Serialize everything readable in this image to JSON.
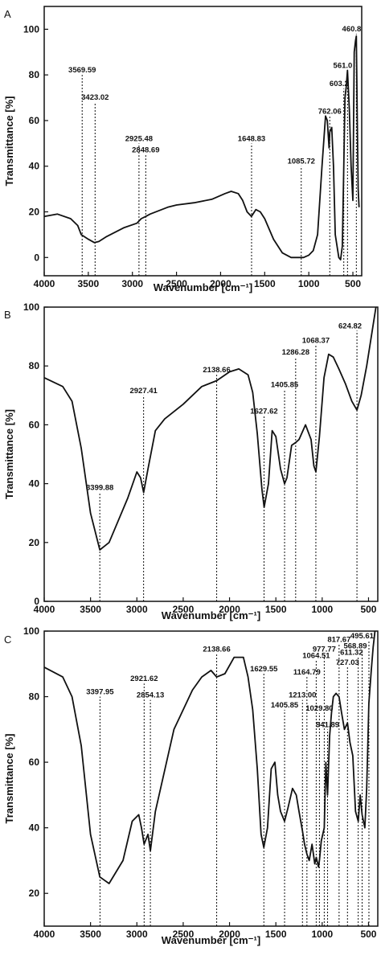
{
  "figure": {
    "background": "#ffffff",
    "ink": "#111111"
  },
  "chart_data": [
    {
      "panel": "A",
      "type": "line",
      "xlabel": "Wavenumber [cm⁻¹]",
      "ylabel": "Transmittance [%]",
      "xlim": [
        4000,
        400
      ],
      "ylim": [
        -8,
        110
      ],
      "xticks": [
        4000,
        3500,
        3000,
        2500,
        2000,
        1500,
        1000,
        500
      ],
      "yticks": [
        0,
        20,
        40,
        60,
        80,
        100
      ],
      "series": [
        {
          "x": [
            4000,
            3850,
            3700,
            3620,
            3580,
            3500,
            3430,
            3380,
            3300,
            3100,
            2950,
            2900,
            2848,
            2800,
            2600,
            2500,
            2300,
            2100,
            1950,
            1880,
            1800,
            1750,
            1700,
            1650,
            1600,
            1550,
            1500,
            1400,
            1300,
            1200,
            1100,
            1060,
            1000,
            950,
            900,
            850,
            810,
            790,
            770,
            762,
            740,
            720,
            700,
            660,
            640,
            620,
            603,
            590,
            575,
            561,
            540,
            520,
            500,
            485,
            470,
            461,
            450,
            440,
            430
          ],
          "y": [
            18,
            19,
            17,
            14,
            10,
            8,
            6.5,
            7,
            9,
            13,
            15,
            17,
            18,
            19,
            22,
            23,
            24,
            25.5,
            28,
            29,
            28,
            25,
            20,
            18,
            21,
            20,
            17,
            8,
            2,
            0,
            0,
            0,
            1,
            3,
            10,
            40,
            62,
            60,
            48,
            55,
            57,
            40,
            10,
            0,
            -1,
            5,
            40,
            70,
            75,
            82,
            65,
            40,
            25,
            90,
            95,
            97,
            60,
            30,
            22
          ]
        }
      ],
      "peaks": [
        {
          "x": 3569.59,
          "label": "3569.59",
          "top": 80
        },
        {
          "x": 3423.02,
          "label": "3423.02",
          "top": 68
        },
        {
          "x": 2925.48,
          "label": "2925.48",
          "top": 50
        },
        {
          "x": 2848.69,
          "label": "2848.69",
          "top": 45
        },
        {
          "x": 1648.83,
          "label": "1648.83",
          "top": 50
        },
        {
          "x": 1085.72,
          "label": "1085.72",
          "top": 40
        },
        {
          "x": 762.06,
          "label": "762.06",
          "top": 62
        },
        {
          "x": 603.2,
          "label": "603.2",
          "top": 74
        },
        {
          "x": 561.0,
          "label": "561.0",
          "top": 82
        },
        {
          "x": 460.8,
          "label": "460.8",
          "top": 98
        }
      ]
    },
    {
      "panel": "B",
      "type": "line",
      "xlabel": "Wavenumber [cm⁻¹]",
      "ylabel": "Transmittance [%]",
      "xlim": [
        4000,
        400
      ],
      "ylim": [
        0,
        100
      ],
      "xticks": [
        4000,
        3500,
        3000,
        2500,
        2000,
        1500,
        1000,
        500
      ],
      "yticks": [
        0,
        20,
        40,
        60,
        80,
        100
      ],
      "series": [
        {
          "x": [
            4000,
            3800,
            3700,
            3600,
            3500,
            3400,
            3300,
            3100,
            3000,
            2960,
            2927,
            2880,
            2800,
            2700,
            2500,
            2300,
            2138,
            2000,
            1900,
            1800,
            1750,
            1700,
            1650,
            1627,
            1580,
            1540,
            1500,
            1450,
            1406,
            1380,
            1330,
            1286,
            1250,
            1180,
            1120,
            1090,
            1068,
            1030,
            980,
            930,
            880,
            820,
            750,
            680,
            625,
            580,
            520,
            460,
            420
          ],
          "y": [
            76,
            73,
            68,
            52,
            30,
            17.5,
            20,
            35,
            44,
            42,
            37,
            45,
            58,
            62,
            67,
            73,
            75,
            78,
            79,
            77,
            71,
            57,
            38,
            32,
            40,
            58,
            56,
            45,
            40,
            42,
            53,
            54,
            55,
            60,
            55,
            46,
            44,
            56,
            76,
            84,
            83,
            79,
            74,
            68,
            65,
            70,
            80,
            92,
            100
          ]
        }
      ],
      "peaks": [
        {
          "x": 3399.88,
          "label": "3399.88",
          "top": 37
        },
        {
          "x": 2927.41,
          "label": "2927.41",
          "top": 70
        },
        {
          "x": 2138.66,
          "label": "2138.66",
          "top": 77
        },
        {
          "x": 1627.62,
          "label": "1627.62",
          "top": 63
        },
        {
          "x": 1405.85,
          "label": "1405.85",
          "top": 72
        },
        {
          "x": 1286.28,
          "label": "1286.28",
          "top": 83
        },
        {
          "x": 1068.37,
          "label": "1068.37",
          "top": 87
        },
        {
          "x": 624.82,
          "label": "624.82",
          "top": 92
        }
      ]
    },
    {
      "panel": "C",
      "type": "line",
      "xlabel": "Wavenumber [cm⁻¹]",
      "ylabel": "Transmittance [%]",
      "xlim": [
        4000,
        400
      ],
      "ylim": [
        10,
        100
      ],
      "xticks": [
        4000,
        3500,
        3000,
        2500,
        2000,
        1500,
        1000,
        500
      ],
      "yticks": [
        20,
        40,
        60,
        80,
        100
      ],
      "series": [
        {
          "x": [
            4000,
            3800,
            3700,
            3600,
            3500,
            3400,
            3300,
            3150,
            3050,
            2980,
            2950,
            2922,
            2880,
            2854,
            2800,
            2600,
            2400,
            2300,
            2200,
            2138,
            2050,
            1950,
            1850,
            1800,
            1750,
            1700,
            1660,
            1630,
            1590,
            1550,
            1510,
            1480,
            1450,
            1406,
            1370,
            1320,
            1280,
            1250,
            1213,
            1190,
            1165,
            1140,
            1110,
            1080,
            1064,
            1040,
            1030,
            1010,
            978,
            960,
            942,
            920,
            900,
            880,
            850,
            818,
            790,
            760,
            727,
            700,
            670,
            640,
            611,
            590,
            569,
            540,
            520,
            496,
            470,
            450,
            430
          ],
          "y": [
            89,
            86,
            80,
            65,
            38,
            25,
            23,
            30,
            42,
            44,
            40,
            35,
            38,
            33,
            45,
            70,
            82,
            86,
            88,
            86,
            87,
            92,
            92,
            86,
            76,
            58,
            38,
            34,
            40,
            58,
            60,
            50,
            45,
            42,
            46,
            52,
            50,
            45,
            39,
            35,
            32,
            30,
            35,
            29,
            31,
            28,
            30,
            36,
            40,
            60,
            50,
            68,
            75,
            80,
            81,
            80,
            75,
            70,
            72,
            66,
            62,
            45,
            42,
            50,
            44,
            40,
            52,
            78,
            88,
            95,
            100
          ]
        }
      ],
      "peaks": [
        {
          "x": 3397.95,
          "label": "3397.95",
          "top": 80
        },
        {
          "x": 2921.62,
          "label": "2921.62",
          "top": 84
        },
        {
          "x": 2854.13,
          "label": "2854.13",
          "top": 79
        },
        {
          "x": 2138.66,
          "label": "2138.66",
          "top": 93
        },
        {
          "x": 1629.55,
          "label": "1629.55",
          "top": 87
        },
        {
          "x": 1405.85,
          "label": "1405.85",
          "top": 76
        },
        {
          "x": 1213.0,
          "label": "1213.00",
          "top": 79
        },
        {
          "x": 1164.79,
          "label": "1164.79",
          "top": 86
        },
        {
          "x": 1064.51,
          "label": "1064.51",
          "top": 91
        },
        {
          "x": 1029.8,
          "label": "1029.80",
          "top": 75
        },
        {
          "x": 977.77,
          "label": "977.77",
          "top": 93
        },
        {
          "x": 941.89,
          "label": "941.89",
          "top": 70
        },
        {
          "x": 817.67,
          "label": "817.67",
          "top": 96
        },
        {
          "x": 727.03,
          "label": "727.03",
          "top": 89
        },
        {
          "x": 611.32,
          "label": "611.32",
          "top": 92
        },
        {
          "x": 568.89,
          "label": "568.89",
          "top": 94
        },
        {
          "x": 495.61,
          "label": "495.61",
          "top": 97
        }
      ]
    }
  ]
}
